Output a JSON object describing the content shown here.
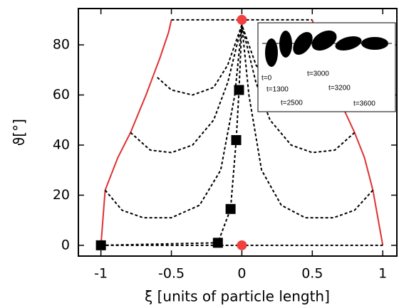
{
  "chart_data": {
    "type": "line",
    "x_label": "ξ [units of particle length]",
    "y_label": "ϑ[°]",
    "xlim": [
      -1.16,
      1.1
    ],
    "ylim": [
      -4.3,
      94.5
    ],
    "xticks": [
      -1,
      -0.5,
      0,
      0.5,
      1
    ],
    "yticks": [
      0,
      20,
      40,
      60,
      80
    ],
    "series": [
      {
        "mark": "line",
        "dash": false,
        "color": "#e03030",
        "x": [
          -1,
          -0.97,
          -0.88,
          -0.79,
          -0.68,
          -0.58,
          -0.52,
          -0.5
        ],
        "values": [
          0,
          22,
          35,
          45,
          60,
          75,
          85,
          90
        ]
      },
      {
        "mark": "line",
        "dash": false,
        "color": "#e03030",
        "x": [
          1,
          0.93,
          0.87,
          0.8,
          0.66,
          0.57,
          0.52,
          0.5
        ],
        "values": [
          0,
          22,
          35,
          45,
          62,
          76,
          85,
          90
        ]
      },
      {
        "mark": "line",
        "dash": true,
        "color": "#000000",
        "x": [
          -1,
          1
        ],
        "values": [
          0,
          0
        ]
      },
      {
        "mark": "line",
        "dash": true,
        "color": "#000000",
        "x": [
          -0.5,
          0.5
        ],
        "values": [
          90,
          90
        ]
      },
      {
        "mark": "line",
        "dash": true,
        "color": "#000000",
        "x": [
          -0.97,
          -0.85,
          -0.7,
          -0.5,
          -0.3,
          -0.15,
          -0.05,
          0
        ],
        "values": [
          22,
          14,
          11,
          11,
          16,
          30,
          60,
          88
        ]
      },
      {
        "mark": "line",
        "dash": true,
        "color": "#000000",
        "x": [
          0.93,
          0.8,
          0.65,
          0.45,
          0.28,
          0.14,
          0.05,
          0
        ],
        "values": [
          22,
          14,
          11,
          11,
          16,
          30,
          60,
          88
        ]
      },
      {
        "mark": "line",
        "dash": true,
        "color": "#000000",
        "x": [
          -0.79,
          -0.65,
          -0.5,
          -0.35,
          -0.2,
          -0.1,
          0
        ],
        "values": [
          45,
          38,
          37,
          40,
          50,
          65,
          88
        ]
      },
      {
        "mark": "line",
        "dash": true,
        "color": "#000000",
        "x": [
          0.8,
          0.66,
          0.5,
          0.35,
          0.2,
          0.1,
          0
        ],
        "values": [
          45,
          38,
          37,
          40,
          50,
          65,
          88
        ]
      },
      {
        "mark": "line",
        "dash": true,
        "color": "#000000",
        "x": [
          -0.6,
          -0.5,
          -0.35,
          -0.2,
          -0.1,
          0
        ],
        "values": [
          67,
          62,
          60,
          63,
          72,
          88
        ]
      },
      {
        "mark": "line",
        "dash": true,
        "color": "#000000",
        "x": [
          0.63,
          0.52,
          0.37,
          0.22,
          0.1,
          0
        ],
        "values": [
          67,
          62,
          60,
          63,
          72,
          88
        ]
      },
      {
        "mark": "line",
        "dash": true,
        "color": "#000000",
        "x": [
          0,
          0
        ],
        "values": [
          88,
          90
        ]
      },
      {
        "mark": "line",
        "dash": true,
        "color": "#000000",
        "x": [
          -1,
          -0.17,
          -0.08,
          -0.04,
          -0.02,
          0
        ],
        "values": [
          0,
          1,
          14.5,
          42,
          62,
          88
        ]
      },
      {
        "mark": "square",
        "color": "#000000",
        "x": [
          -1,
          -0.17,
          -0.08,
          -0.04,
          -0.02
        ],
        "values": [
          0,
          1,
          14.5,
          42,
          62
        ]
      },
      {
        "mark": "circle",
        "color": "#f04040",
        "x": [
          0,
          0
        ],
        "values": [
          90,
          0
        ]
      }
    ],
    "inset_labels": [
      "t=0",
      "t=1300",
      "t=2500",
      "t=3000",
      "t=3200",
      "t=3600"
    ]
  }
}
